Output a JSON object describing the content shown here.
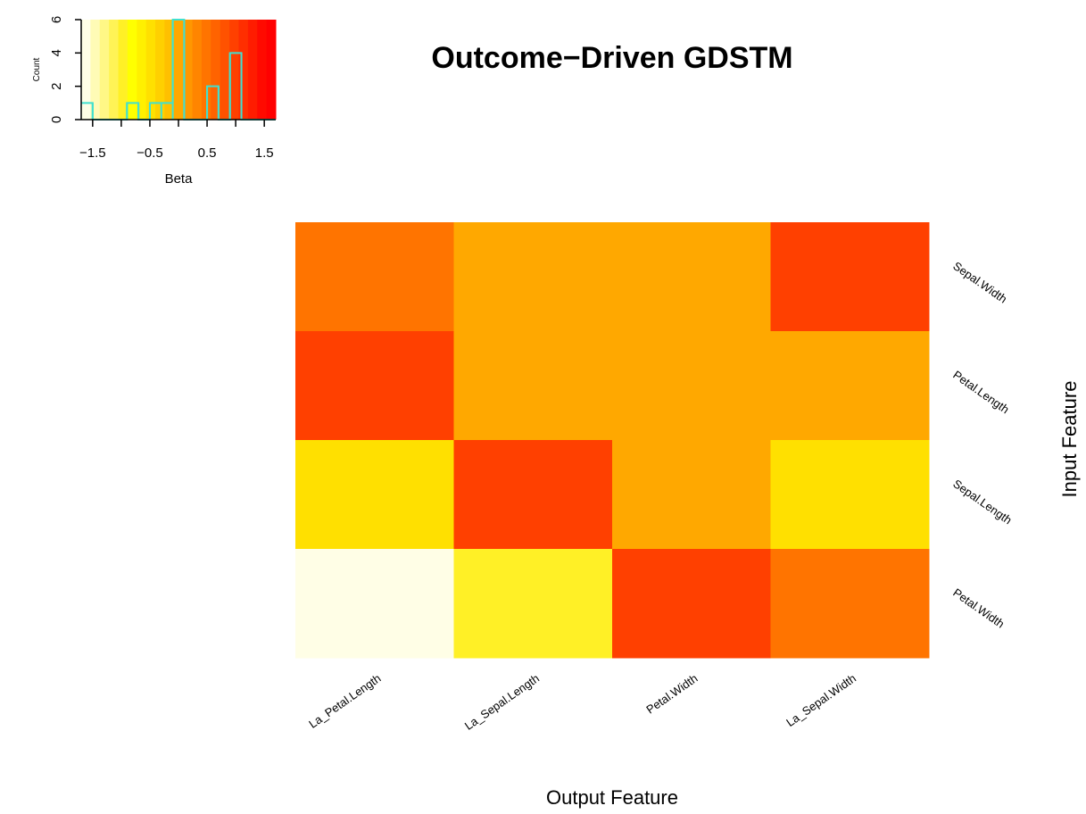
{
  "chart_data": [
    {
      "type": "heatmap",
      "title": "Outcome−Driven GDSTM",
      "xlabel": "Output Feature",
      "ylabel": "Input Feature",
      "x_categories": [
        "La_Petal.Length",
        "La_Sepal.Length",
        "Petal.Width",
        "La_Sepal.Width"
      ],
      "y_categories": [
        "Sepal.Width",
        "Petal.Length",
        "Sepal.Length",
        "Petal.Width"
      ],
      "values": [
        [
          0.5,
          0.0,
          0.0,
          1.0
        ],
        [
          1.0,
          0.0,
          0.0,
          0.0
        ],
        [
          -0.5,
          1.0,
          0.0,
          -0.5
        ],
        [
          -1.7,
          -1.0,
          1.0,
          0.5
        ]
      ],
      "color_scale": "heat",
      "value_range": [
        -1.7,
        1.7
      ]
    },
    {
      "type": "histogram",
      "role": "color-key",
      "xlabel": "Beta",
      "ylabel": "Count",
      "xlim": [
        -1.7,
        1.7
      ],
      "ylim": [
        0,
        6
      ],
      "x_ticks": [
        "−1.5",
        "−0.5",
        "0.5",
        "1.5"
      ],
      "x_tick_values": [
        -1.5,
        -0.5,
        0.5,
        1.5
      ],
      "y_ticks": [
        "0",
        "2",
        "4",
        "6"
      ],
      "y_tick_values": [
        0,
        2,
        4,
        6
      ],
      "bins": [
        {
          "start": -1.7,
          "end": -1.5,
          "count": 1
        },
        {
          "start": -1.5,
          "end": -1.3,
          "count": 0
        },
        {
          "start": -1.3,
          "end": -1.1,
          "count": 0
        },
        {
          "start": -1.1,
          "end": -0.9,
          "count": 0
        },
        {
          "start": -0.9,
          "end": -0.7,
          "count": 1
        },
        {
          "start": -0.7,
          "end": -0.5,
          "count": 0
        },
        {
          "start": -0.5,
          "end": -0.3,
          "count": 1
        },
        {
          "start": -0.3,
          "end": -0.1,
          "count": 1
        },
        {
          "start": -0.1,
          "end": 0.1,
          "count": 6
        },
        {
          "start": 0.1,
          "end": 0.3,
          "count": 0
        },
        {
          "start": 0.3,
          "end": 0.5,
          "count": 0
        },
        {
          "start": 0.5,
          "end": 0.7,
          "count": 2
        },
        {
          "start": 0.7,
          "end": 0.9,
          "count": 0
        },
        {
          "start": 0.9,
          "end": 1.1,
          "count": 4
        },
        {
          "start": 1.1,
          "end": 1.3,
          "count": 0
        },
        {
          "start": 1.3,
          "end": 1.5,
          "count": 0
        },
        {
          "start": 1.5,
          "end": 1.7,
          "count": 0
        }
      ],
      "line_color": "#40e0d0"
    }
  ],
  "colors": {
    "heat_ramp": [
      "#fffee6",
      "#fffbb6",
      "#fff786",
      "#fff356",
      "#fff026",
      "#ffff00",
      "#fff000",
      "#ffe000",
      "#ffd000",
      "#ffc000",
      "#ffa800",
      "#ff9700",
      "#ff8500",
      "#ff7400",
      "#ff6300",
      "#ff5200",
      "#ff4000",
      "#ff2e00",
      "#ff1c00",
      "#ff0a00",
      "#ff0000"
    ]
  }
}
